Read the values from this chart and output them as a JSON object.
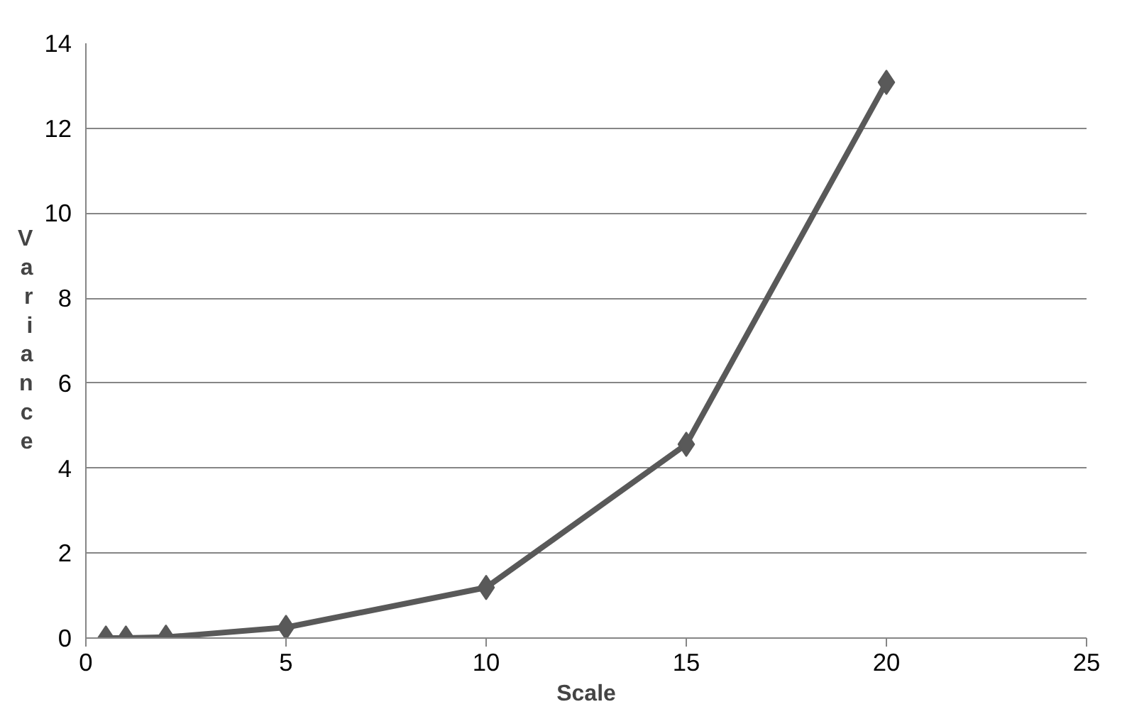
{
  "chart_data": {
    "type": "line",
    "xlabel": "Scale",
    "ylabel": "Variance",
    "x": [
      0.5,
      1,
      2,
      5,
      10,
      15,
      20
    ],
    "series": [
      {
        "color": "#595959",
        "values": [
          0,
          0,
          0.02,
          0.25,
          1.19,
          4.56,
          13.08
        ]
      }
    ],
    "xlim": [
      0,
      25
    ],
    "xticks": [
      0,
      5,
      10,
      15,
      20,
      25
    ],
    "ylim": [
      0,
      14
    ],
    "yticks": [
      0,
      2,
      4,
      6,
      8,
      10,
      12,
      14
    ],
    "grid": "y",
    "marker": "diamond",
    "line_style": "solid"
  }
}
